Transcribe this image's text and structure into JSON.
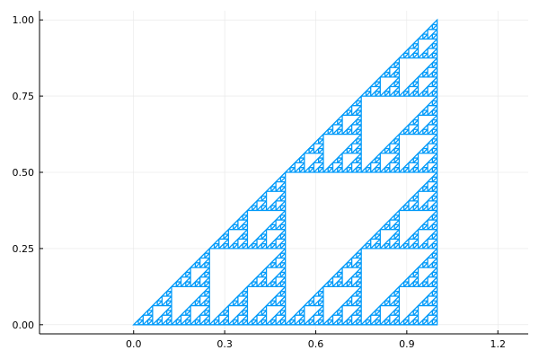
{
  "chart_data": {
    "type": "line",
    "title": "",
    "xlabel": "",
    "ylabel": "",
    "xlim": [
      -0.31,
      1.3
    ],
    "ylim": [
      -0.03,
      1.03
    ],
    "x_ticks": [
      0.0,
      0.3,
      0.6,
      0.9,
      1.2
    ],
    "x_tick_labels": [
      "0.0",
      "0.3",
      "0.6",
      "0.9",
      "1.2"
    ],
    "y_ticks": [
      0.0,
      0.25,
      0.5,
      0.75,
      1.0
    ],
    "y_tick_labels": [
      "0.00",
      "0.25",
      "0.50",
      "0.75",
      "1.00"
    ],
    "grid": true,
    "legend": false,
    "series": [
      {
        "shape": "sierpinski-triangle",
        "vertices": [
          [
            0,
            0
          ],
          [
            1,
            0
          ],
          [
            1,
            1
          ]
        ],
        "depth": 6,
        "color": "#009af9"
      }
    ]
  }
}
